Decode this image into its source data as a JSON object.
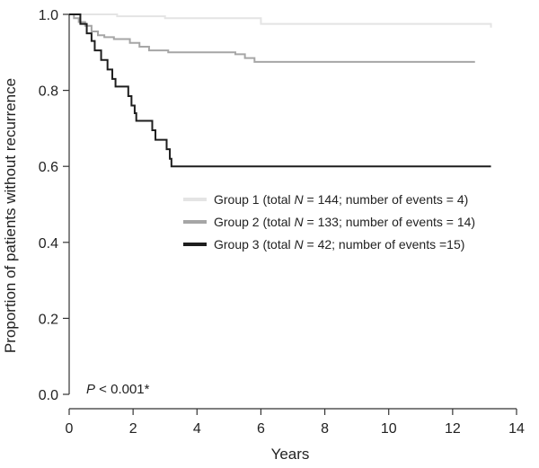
{
  "chart_data": {
    "type": "line",
    "title": "",
    "xlabel": "Years",
    "ylabel": "Proportion of patients without recurrence",
    "xlim": [
      0,
      14
    ],
    "ylim": [
      0.0,
      1.0
    ],
    "x_ticks": [
      "0",
      "2",
      "4",
      "6",
      "8",
      "10",
      "12",
      "14"
    ],
    "y_ticks": [
      "0.0",
      "0.2",
      "0.4",
      "0.6",
      "0.8",
      "1.0"
    ],
    "grid": false,
    "legend_position": "center-right",
    "annotation": {
      "p_prefix": "P",
      "p_rest": " < 0.001*"
    },
    "series": [
      {
        "name": "Group 1",
        "legend_prefix": "Group 1 (total ",
        "legend_n": "N",
        "legend_suffix": " = 144; number of events = 4)",
        "color": "#e4e4e4",
        "points": [
          [
            0,
            1.0
          ],
          [
            1.5,
            0.995
          ],
          [
            3.0,
            0.99
          ],
          [
            6.0,
            0.975
          ],
          [
            13.2,
            0.965
          ]
        ]
      },
      {
        "name": "Group 2",
        "legend_prefix": "Group 2 (total ",
        "legend_n": "N",
        "legend_suffix": " = 133; number of events = 14)",
        "color": "#a6a6a6",
        "points": [
          [
            0,
            1.0
          ],
          [
            0.15,
            0.99
          ],
          [
            0.3,
            0.98
          ],
          [
            0.5,
            0.97
          ],
          [
            0.7,
            0.955
          ],
          [
            0.9,
            0.945
          ],
          [
            1.1,
            0.94
          ],
          [
            1.4,
            0.935
          ],
          [
            1.9,
            0.925
          ],
          [
            2.2,
            0.915
          ],
          [
            2.5,
            0.905
          ],
          [
            3.1,
            0.9
          ],
          [
            5.2,
            0.895
          ],
          [
            5.5,
            0.885
          ],
          [
            5.8,
            0.875
          ],
          [
            12.7,
            0.875
          ]
        ]
      },
      {
        "name": "Group 3",
        "legend_prefix": "Group 3 (total ",
        "legend_n": "N",
        "legend_suffix": " = 42; number of events =15)",
        "color": "#1e1e1e",
        "points": [
          [
            0,
            1.0
          ],
          [
            0.35,
            0.975
          ],
          [
            0.55,
            0.95
          ],
          [
            0.7,
            0.93
          ],
          [
            0.8,
            0.905
          ],
          [
            1.0,
            0.88
          ],
          [
            1.2,
            0.855
          ],
          [
            1.35,
            0.83
          ],
          [
            1.45,
            0.81
          ],
          [
            1.85,
            0.785
          ],
          [
            1.95,
            0.76
          ],
          [
            2.05,
            0.74
          ],
          [
            2.1,
            0.72
          ],
          [
            2.6,
            0.695
          ],
          [
            2.7,
            0.67
          ],
          [
            3.05,
            0.645
          ],
          [
            3.15,
            0.62
          ],
          [
            3.2,
            0.6
          ],
          [
            13.2,
            0.6
          ]
        ]
      }
    ]
  }
}
